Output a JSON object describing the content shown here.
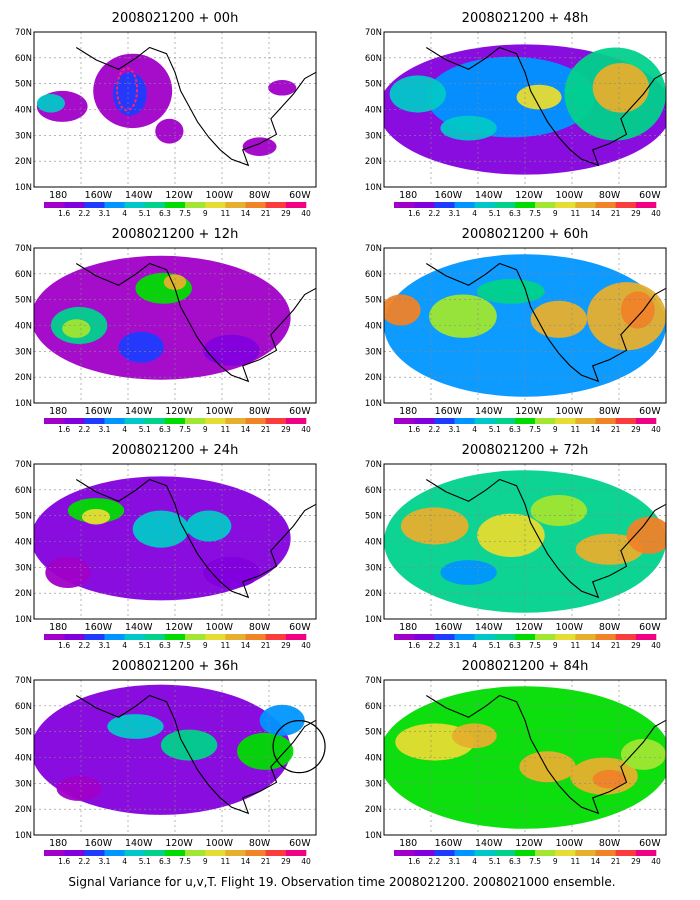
{
  "panels": [
    {
      "title": "2008021200 + 00h"
    },
    {
      "title": "2008021200 + 48h"
    },
    {
      "title": "2008021200 + 12h"
    },
    {
      "title": "2008021200 + 60h"
    },
    {
      "title": "2008021200 + 24h"
    },
    {
      "title": "2008021200 + 72h"
    },
    {
      "title": "2008021200 + 36h"
    },
    {
      "title": "2008021200 + 84h"
    }
  ],
  "lat_labels": [
    "70N",
    "60N",
    "50N",
    "40N",
    "30N",
    "20N",
    "10N"
  ],
  "lon_labels": [
    "180",
    "160W",
    "140W",
    "120W",
    "100W",
    "80W",
    "60W"
  ],
  "colorbar": {
    "labels": [
      "1.6",
      "2.2",
      "3.1",
      "4",
      "5.1",
      "6.3",
      "7.5",
      "9",
      "11",
      "14",
      "21",
      "29",
      "40"
    ],
    "colors": [
      "#a000c8",
      "#8200dc",
      "#1e3cff",
      "#0096ff",
      "#00c8c8",
      "#00d28c",
      "#00dc00",
      "#a0e632",
      "#e6dc32",
      "#e6af2d",
      "#f08228",
      "#fa3c3c",
      "#f00082"
    ]
  },
  "footer": "Signal Variance for u,v,T. Flight 19. Observation time 2008021200. 2008021000 ensemble."
}
